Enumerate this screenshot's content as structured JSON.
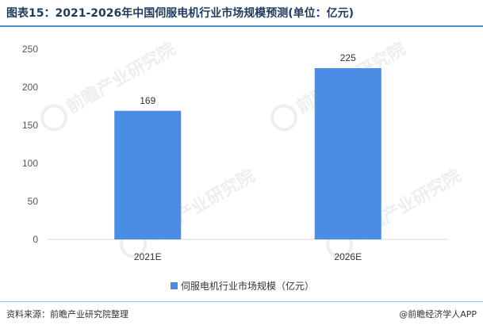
{
  "title": "图表15：2021-2026年中国伺服电机行业市场规模预测(单位：亿元)",
  "source": "资料来源：前瞻产业研究院整理",
  "credit": "@前瞻经济学人APP",
  "watermark_text": "前瞻产业研究院",
  "colors": {
    "bar": "#4a8de3",
    "title": "#1f3b5c",
    "rule": "#4a90d9",
    "grid": "#d9d9d9"
  },
  "chart_data": {
    "type": "bar",
    "title": "图表15：2021-2026年中国伺服电机行业市场规模预测(单位：亿元)",
    "categories": [
      "2021E",
      "2026E"
    ],
    "series": [
      {
        "name": "伺服电机行业市场规模（亿元）",
        "values": [
          169,
          225
        ]
      }
    ],
    "ylim": [
      0,
      250
    ],
    "yticks": [
      0,
      50,
      100,
      150,
      200,
      250
    ],
    "grid": false,
    "legend": "bottom-center",
    "data_labels": true
  }
}
